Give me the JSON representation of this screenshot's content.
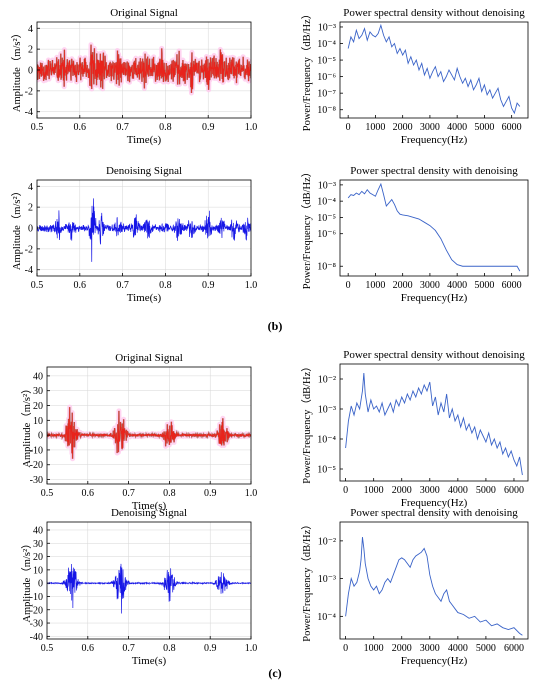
{
  "panel_captions": [
    "(b)",
    "(c)"
  ],
  "colors": {
    "original": "#e8231c",
    "original_dark": "#6b3a16",
    "denoised": "#1616e6",
    "psd": "#3a63c8",
    "glow": "#ffc9ee"
  },
  "chart_data": [
    {
      "id": "b-orig",
      "type": "line",
      "title": "Original Signal",
      "xlabel": "Time(s)",
      "ylabel": "Amplitude（m/s²）",
      "xlim": [
        0.5,
        1.0
      ],
      "ylim": [
        -4.6,
        4.6
      ],
      "grid": true,
      "color": "original",
      "glow": true,
      "xticks": [
        {
          "v": 0.5,
          "t": "0.5"
        },
        {
          "v": 0.6,
          "t": "0.6"
        },
        {
          "v": 0.7,
          "t": "0.7"
        },
        {
          "v": 0.8,
          "t": "0.8"
        },
        {
          "v": 0.9,
          "t": "0.9"
        },
        {
          "v": 1.0,
          "t": "1.0"
        }
      ],
      "yticks": [
        {
          "v": 4,
          "t": "4"
        },
        {
          "v": 2,
          "t": "2"
        },
        {
          "v": 0,
          "t": "0"
        },
        {
          "v": -2,
          "t": "-2"
        },
        {
          "v": -4,
          "t": "-4"
        }
      ],
      "envelope": {
        "base": 1.4,
        "bursts": [
          [
            0.56,
            1.0
          ],
          [
            0.63,
            2.8
          ],
          [
            0.65,
            1.2
          ],
          [
            0.69,
            0.8
          ],
          [
            0.75,
            1.0
          ],
          [
            0.79,
            0.9
          ],
          [
            0.83,
            0.8
          ],
          [
            0.86,
            0.9
          ],
          [
            0.9,
            1.3
          ],
          [
            0.93,
            1.0
          ],
          [
            0.96,
            0.9
          ]
        ],
        "seed": 11,
        "n": 900
      }
    },
    {
      "id": "b-psd-raw",
      "type": "line",
      "scale": "log",
      "title": "Power spectral density without denoising",
      "xlabel": "Frequency(Hz)",
      "ylabel": "Power/Frequency（dB/Hz）",
      "xlim": [
        -300,
        6600
      ],
      "ylim": [
        -8.5,
        -2.7
      ],
      "grid": false,
      "color": "psd",
      "xticks": [
        {
          "v": 0,
          "t": "0"
        },
        {
          "v": 1000,
          "t": "1000"
        },
        {
          "v": 2000,
          "t": "2000"
        },
        {
          "v": 3000,
          "t": "3000"
        },
        {
          "v": 4000,
          "t": "4000"
        },
        {
          "v": 5000,
          "t": "5000"
        },
        {
          "v": 6000,
          "t": "6000"
        }
      ],
      "yticks": [
        {
          "v": -3,
          "t": "10⁻³"
        },
        {
          "v": -4,
          "t": "10⁻⁴"
        },
        {
          "v": -5,
          "t": "10⁻⁵"
        },
        {
          "v": -6,
          "t": "10⁻⁶"
        },
        {
          "v": -7,
          "t": "10⁻⁷"
        },
        {
          "v": -8,
          "t": "10⁻⁸"
        }
      ],
      "x": [
        0,
        100,
        200,
        300,
        400,
        500,
        600,
        700,
        800,
        900,
        1000,
        1100,
        1200,
        1300,
        1400,
        1500,
        1600,
        1700,
        1800,
        1900,
        2000,
        2100,
        2200,
        2300,
        2400,
        2500,
        2600,
        2700,
        2800,
        2900,
        3000,
        3100,
        3200,
        3300,
        3400,
        3500,
        3600,
        3700,
        3800,
        3900,
        4000,
        4100,
        4200,
        4300,
        4400,
        4500,
        4600,
        4700,
        4800,
        4900,
        5000,
        5100,
        5200,
        5300,
        5400,
        5500,
        5600,
        5700,
        5800,
        5900,
        6000,
        6100,
        6200,
        6300
      ],
      "y": [
        -4.3,
        -3.6,
        -3.9,
        -3.2,
        -3.7,
        -3.5,
        -3.1,
        -3.8,
        -3.3,
        -3.5,
        -3.6,
        -3.4,
        -2.9,
        -3.5,
        -3.9,
        -3.6,
        -4.2,
        -4.0,
        -4.6,
        -4.3,
        -4.7,
        -4.4,
        -5.2,
        -4.8,
        -5.3,
        -5.0,
        -5.6,
        -5.2,
        -5.9,
        -5.5,
        -6.1,
        -5.7,
        -5.4,
        -6.0,
        -5.7,
        -6.3,
        -6.0,
        -5.6,
        -5.9,
        -6.2,
        -5.5,
        -6.0,
        -6.4,
        -6.1,
        -6.6,
        -6.2,
        -6.8,
        -6.5,
        -6.1,
        -6.9,
        -6.5,
        -7.1,
        -6.8,
        -7.3,
        -7.0,
        -6.7,
        -7.4,
        -7.8,
        -7.5,
        -7.2,
        -7.9,
        -8.2,
        -7.6,
        -7.8
      ]
    },
    {
      "id": "b-den",
      "type": "line",
      "title": "Denoising Signal",
      "xlabel": "Time(s)",
      "ylabel": "Amplitude（m/s²）",
      "xlim": [
        0.5,
        1.0
      ],
      "ylim": [
        -4.6,
        4.6
      ],
      "grid": true,
      "color": "denoised",
      "glow": false,
      "xticks": [
        {
          "v": 0.5,
          "t": "0.5"
        },
        {
          "v": 0.6,
          "t": "0.6"
        },
        {
          "v": 0.7,
          "t": "0.7"
        },
        {
          "v": 0.8,
          "t": "0.8"
        },
        {
          "v": 0.9,
          "t": "0.9"
        },
        {
          "v": 1.0,
          "t": "1.0"
        }
      ],
      "yticks": [
        {
          "v": 4,
          "t": "4"
        },
        {
          "v": 2,
          "t": "2"
        },
        {
          "v": 0,
          "t": "0"
        },
        {
          "v": -2,
          "t": "-2"
        },
        {
          "v": -4,
          "t": "-4"
        }
      ],
      "envelope": {
        "base": 0.45,
        "bursts": [
          [
            0.55,
            1.4
          ],
          [
            0.58,
            0.9
          ],
          [
            0.63,
            3.6
          ],
          [
            0.65,
            1.6
          ],
          [
            0.69,
            1.0
          ],
          [
            0.73,
            1.2
          ],
          [
            0.76,
            1.4
          ],
          [
            0.8,
            0.9
          ],
          [
            0.83,
            1.6
          ],
          [
            0.86,
            0.9
          ],
          [
            0.9,
            1.8
          ],
          [
            0.93,
            1.3
          ],
          [
            0.96,
            1.2
          ],
          [
            0.99,
            1.1
          ]
        ],
        "seed": 23,
        "n": 900
      }
    },
    {
      "id": "b-psd-den",
      "type": "line",
      "scale": "log",
      "title": "Power spectral density with denoising",
      "xlabel": "Frequency(Hz)",
      "ylabel": "Power/Frequency（dB/Hz）",
      "xlim": [
        -300,
        6600
      ],
      "ylim": [
        -8.6,
        -2.7
      ],
      "grid": false,
      "color": "psd",
      "xticks": [
        {
          "v": 0,
          "t": "0"
        },
        {
          "v": 1000,
          "t": "1000"
        },
        {
          "v": 2000,
          "t": "2000"
        },
        {
          "v": 3000,
          "t": "3000"
        },
        {
          "v": 4000,
          "t": "4000"
        },
        {
          "v": 5000,
          "t": "5000"
        },
        {
          "v": 6000,
          "t": "6000"
        }
      ],
      "yticks": [
        {
          "v": -3,
          "t": "10⁻³"
        },
        {
          "v": -4,
          "t": "10⁻⁴"
        },
        {
          "v": -5,
          "t": "10⁻⁵"
        },
        {
          "v": -6,
          "t": "10⁻⁶"
        },
        {
          "v": -8,
          "t": "10⁻⁸"
        }
      ],
      "x": [
        0,
        100,
        200,
        300,
        400,
        500,
        600,
        700,
        800,
        900,
        1000,
        1100,
        1200,
        1300,
        1400,
        1500,
        1600,
        1700,
        1800,
        1900,
        2000,
        2200,
        2400,
        2600,
        2800,
        3000,
        3200,
        3400,
        3600,
        3800,
        4000,
        4200,
        4400,
        4600,
        4800,
        5000,
        5200,
        5400,
        5600,
        5800,
        6000,
        6200,
        6300
      ],
      "y": [
        -3.8,
        -3.6,
        -3.65,
        -3.5,
        -3.6,
        -3.4,
        -3.55,
        -3.3,
        -3.5,
        -3.6,
        -3.7,
        -3.3,
        -2.95,
        -3.6,
        -4.3,
        -4.1,
        -3.9,
        -4.2,
        -4.6,
        -4.8,
        -4.85,
        -4.9,
        -5.0,
        -5.1,
        -5.3,
        -5.5,
        -5.8,
        -6.3,
        -7.0,
        -7.6,
        -7.9,
        -8.0,
        -8.0,
        -8.0,
        -8.0,
        -8.0,
        -8.0,
        -8.0,
        -8.0,
        -8.0,
        -8.0,
        -8.0,
        -8.3
      ]
    },
    {
      "id": "c-orig",
      "type": "line",
      "title": "Original Signal",
      "xlabel": "Time(s)",
      "ylabel": "Amplitude（m/s²）",
      "xlim": [
        0.5,
        1.0
      ],
      "ylim": [
        -33,
        46
      ],
      "grid": true,
      "color": "original",
      "glow": true,
      "xticks": [
        {
          "v": 0.5,
          "t": "0.5"
        },
        {
          "v": 0.6,
          "t": "0.6"
        },
        {
          "v": 0.7,
          "t": "0.7"
        },
        {
          "v": 0.8,
          "t": "0.8"
        },
        {
          "v": 0.9,
          "t": "0.9"
        },
        {
          "v": 1.0,
          "t": "1.0"
        }
      ],
      "yticks": [
        {
          "v": 40,
          "t": "40"
        },
        {
          "v": 30,
          "t": "30"
        },
        {
          "v": 20,
          "t": "20"
        },
        {
          "v": 10,
          "t": "10"
        },
        {
          "v": 0,
          "t": "0"
        },
        {
          "v": -10,
          "t": "-10"
        },
        {
          "v": -20,
          "t": "-20"
        },
        {
          "v": -30,
          "t": "-30"
        }
      ],
      "envelope": {
        "base": 1.2,
        "bursts": [
          [
            0.56,
            22
          ],
          [
            0.68,
            20
          ],
          [
            0.8,
            13
          ],
          [
            0.93,
            12
          ]
        ],
        "width": 0.012,
        "seed": 31,
        "n": 900
      }
    },
    {
      "id": "c-psd-raw",
      "type": "line",
      "scale": "log",
      "title": "Power spectral density without denoising",
      "xlabel": "Frequency(Hz)",
      "ylabel": "Power/Frequency（dB/Hz）",
      "xlim": [
        -200,
        6500
      ],
      "ylim": [
        -5.4,
        -1.5
      ],
      "grid": false,
      "color": "psd",
      "xticks": [
        {
          "v": 0,
          "t": "0"
        },
        {
          "v": 1000,
          "t": "1000"
        },
        {
          "v": 2000,
          "t": "2000"
        },
        {
          "v": 3000,
          "t": "3000"
        },
        {
          "v": 4000,
          "t": "4000"
        },
        {
          "v": 5000,
          "t": "5000"
        },
        {
          "v": 6000,
          "t": "6000"
        }
      ],
      "yticks": [
        {
          "v": -2,
          "t": "10⁻²"
        },
        {
          "v": -3,
          "t": "10⁻³"
        },
        {
          "v": -4,
          "t": "10⁻⁴"
        },
        {
          "v": -5,
          "t": "10⁻⁵"
        }
      ],
      "x": [
        0,
        100,
        200,
        300,
        400,
        500,
        600,
        650,
        700,
        800,
        900,
        1000,
        1100,
        1200,
        1300,
        1400,
        1500,
        1600,
        1700,
        1800,
        1900,
        2000,
        2100,
        2200,
        2300,
        2400,
        2500,
        2600,
        2700,
        2800,
        2900,
        3000,
        3100,
        3200,
        3300,
        3400,
        3500,
        3600,
        3700,
        3800,
        3900,
        4000,
        4100,
        4200,
        4300,
        4400,
        4500,
        4600,
        4700,
        4800,
        4900,
        5000,
        5100,
        5200,
        5300,
        5400,
        5500,
        5600,
        5700,
        5800,
        5900,
        6000,
        6100,
        6200,
        6300
      ],
      "y": [
        -4.3,
        -3.4,
        -2.9,
        -3.2,
        -2.8,
        -3.0,
        -2.4,
        -1.8,
        -2.5,
        -3.1,
        -2.7,
        -3.0,
        -2.9,
        -3.1,
        -2.8,
        -3.2,
        -3.0,
        -2.8,
        -3.1,
        -2.7,
        -2.9,
        -2.6,
        -2.8,
        -2.5,
        -2.7,
        -2.4,
        -2.6,
        -2.3,
        -2.5,
        -2.2,
        -2.4,
        -2.1,
        -2.9,
        -2.6,
        -3.2,
        -2.8,
        -3.1,
        -2.5,
        -3.3,
        -3.0,
        -3.4,
        -3.2,
        -3.6,
        -3.3,
        -3.7,
        -3.5,
        -3.8,
        -3.6,
        -4.0,
        -3.7,
        -3.9,
        -4.1,
        -3.8,
        -4.2,
        -4.0,
        -4.3,
        -4.1,
        -4.5,
        -4.3,
        -4.6,
        -4.4,
        -4.7,
        -4.9,
        -4.6,
        -5.2
      ]
    },
    {
      "id": "c-den",
      "type": "line",
      "title": "Denoising Signal",
      "xlabel": "Time(s)",
      "ylabel": "Amplitude（m/s²）",
      "xlim": [
        0.5,
        1.0
      ],
      "ylim": [
        -42,
        46
      ],
      "grid": true,
      "color": "denoised",
      "glow": false,
      "xticks": [
        {
          "v": 0.5,
          "t": "0.5"
        },
        {
          "v": 0.6,
          "t": "0.6"
        },
        {
          "v": 0.7,
          "t": "0.7"
        },
        {
          "v": 0.8,
          "t": "0.8"
        },
        {
          "v": 0.9,
          "t": "0.9"
        },
        {
          "v": 1.0,
          "t": "1.0"
        }
      ],
      "yticks": [
        {
          "v": 40,
          "t": "40"
        },
        {
          "v": 30,
          "t": "30"
        },
        {
          "v": 20,
          "t": "20"
        },
        {
          "v": 10,
          "t": "10"
        },
        {
          "v": 0,
          "t": "0"
        },
        {
          "v": -10,
          "t": "-10"
        },
        {
          "v": -20,
          "t": "-20"
        },
        {
          "v": -30,
          "t": "-30"
        },
        {
          "v": -40,
          "t": "-40"
        }
      ],
      "envelope": {
        "base": 0.6,
        "bursts": [
          [
            0.56,
            27
          ],
          [
            0.68,
            24
          ],
          [
            0.8,
            15
          ],
          [
            0.93,
            13
          ]
        ],
        "width": 0.012,
        "seed": 47,
        "n": 900
      }
    },
    {
      "id": "c-psd-den",
      "type": "line",
      "scale": "log",
      "title": "Power spectral density with denoising",
      "xlabel": "Frequency(Hz)",
      "ylabel": "Power/Frequency（dB/Hz）",
      "xlim": [
        -200,
        6500
      ],
      "ylim": [
        -4.6,
        -1.5
      ],
      "grid": false,
      "color": "psd",
      "xticks": [
        {
          "v": 0,
          "t": "0"
        },
        {
          "v": 1000,
          "t": "1000"
        },
        {
          "v": 2000,
          "t": "2000"
        },
        {
          "v": 3000,
          "t": "3000"
        },
        {
          "v": 4000,
          "t": "4000"
        },
        {
          "v": 5000,
          "t": "5000"
        },
        {
          "v": 6000,
          "t": "6000"
        }
      ],
      "yticks": [
        {
          "v": -2,
          "t": "10⁻²"
        },
        {
          "v": -3,
          "t": "10⁻³"
        },
        {
          "v": -4,
          "t": "10⁻⁴"
        }
      ],
      "x": [
        0,
        100,
        200,
        300,
        400,
        500,
        550,
        600,
        650,
        700,
        800,
        900,
        1000,
        1100,
        1200,
        1300,
        1400,
        1500,
        1600,
        1700,
        1800,
        1900,
        2000,
        2100,
        2200,
        2300,
        2400,
        2500,
        2600,
        2700,
        2800,
        2900,
        3000,
        3100,
        3200,
        3300,
        3400,
        3500,
        3600,
        3700,
        3800,
        3900,
        4000,
        4200,
        4400,
        4600,
        4800,
        5000,
        5200,
        5400,
        5600,
        5800,
        6000,
        6200,
        6300
      ],
      "y": [
        -4.0,
        -3.4,
        -3.0,
        -3.2,
        -3.1,
        -2.8,
        -2.5,
        -1.9,
        -2.2,
        -2.6,
        -3.0,
        -3.2,
        -3.3,
        -3.2,
        -3.4,
        -3.3,
        -3.1,
        -3.0,
        -3.1,
        -2.9,
        -2.7,
        -2.5,
        -2.45,
        -2.5,
        -2.6,
        -2.7,
        -2.5,
        -2.4,
        -2.35,
        -2.3,
        -2.2,
        -2.4,
        -2.9,
        -3.2,
        -3.4,
        -3.5,
        -3.6,
        -3.4,
        -3.3,
        -3.6,
        -3.7,
        -3.8,
        -3.9,
        -3.95,
        -4.05,
        -4.0,
        -4.15,
        -4.1,
        -4.25,
        -4.2,
        -4.3,
        -4.35,
        -4.3,
        -4.45,
        -4.5
      ]
    }
  ]
}
